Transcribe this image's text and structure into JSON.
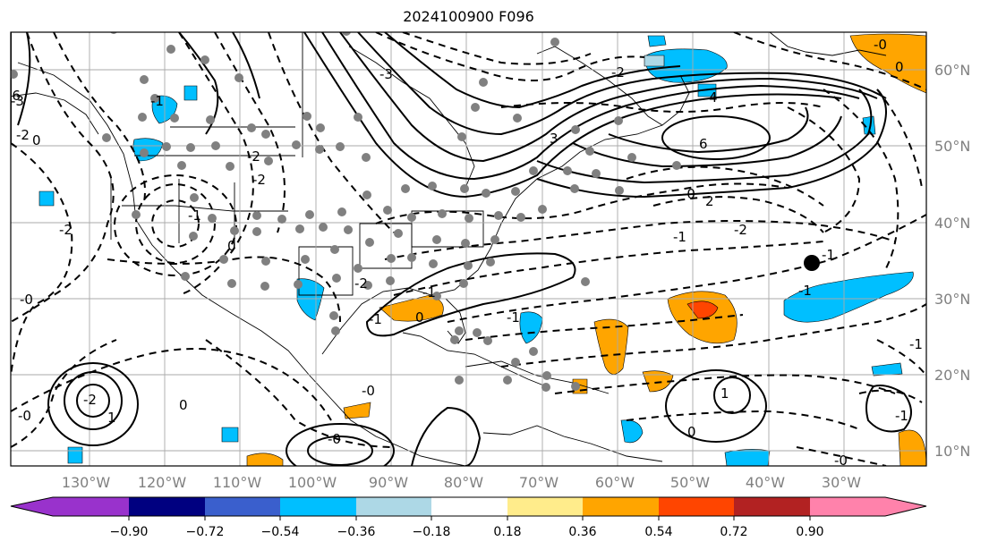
{
  "title": "2024100900 F096",
  "map": {
    "lon_ticks": [
      "130°W",
      "120°W",
      "110°W",
      "100°W",
      "90°W",
      "80°W",
      "70°W",
      "60°W",
      "50°W",
      "40°W",
      "30°W"
    ],
    "lat_ticks": [
      "60°N",
      "50°N",
      "40°N",
      "30°N",
      "20°N",
      "10°N"
    ],
    "grid": true,
    "marker_color": "#000000",
    "station_dot_color": "#808080"
  },
  "colorbar": {
    "colors": [
      "#9932cc",
      "#000080",
      "#3a5fcd",
      "#00bfff",
      "#add8e6",
      "#ffffff",
      "#ffec8b",
      "#ffa500",
      "#ff4500",
      "#b22222",
      "#ff82ab"
    ],
    "labels": [
      "−0.90",
      "−0.72",
      "−0.54",
      "−0.36",
      "−0.18",
      "0.18",
      "0.36",
      "0.54",
      "0.72",
      "0.90"
    ],
    "extend": "both"
  },
  "contour_labels": {
    "l1": "-3",
    "l2": "-6",
    "l3": "-2",
    "l4": "0",
    "l5": "-2",
    "l6": "-1",
    "l7": "0",
    "l8": "-2",
    "l9": "-1",
    "l10": "-0",
    "l11": "-2",
    "l12": "-1",
    "l13": "-0",
    "l14": "0",
    "l15": "-3",
    "l16": "-2",
    "l17": "-0",
    "l18": "-1",
    "l19": "-1",
    "l20": "0",
    "l21": "0",
    "l22": "-0",
    "l23": "-0",
    "l24": "4",
    "l25": "6",
    "l26": "3",
    "l27": "2",
    "l28": "1",
    "l29": "1",
    "l30": "-2",
    "l31": "-1",
    "l32": "-2",
    "l33": "-1",
    "l34": "-0",
    "l35": "-1",
    "l36": "0",
    "l37": "-0",
    "l38": "-1",
    "l39": "-2",
    "l40": "-1"
  }
}
